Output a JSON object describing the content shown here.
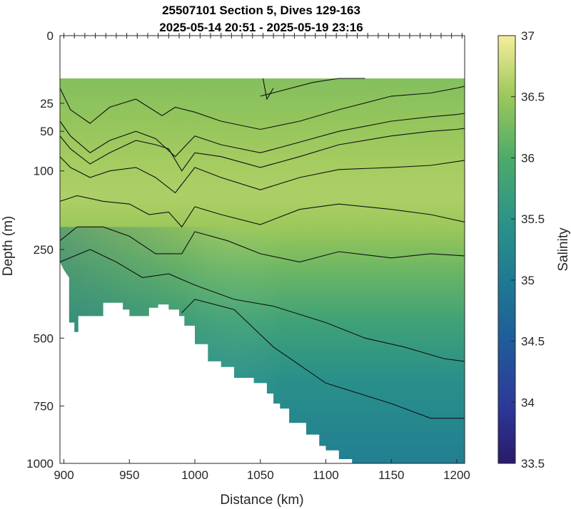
{
  "chart_data": {
    "type": "heatmap",
    "title": [
      "25507101 Section 5, Dives 129-163",
      "2025-05-14 20:51 - 2025-05-19 23:16"
    ],
    "xlabel": "Distance (km)",
    "ylabel": "Depth (m)",
    "xlim": [
      897,
      1206
    ],
    "ylim": [
      0,
      1000
    ],
    "y_scale": "sqrt",
    "x_ticks": [
      900,
      950,
      1000,
      1050,
      1100,
      1150,
      1200
    ],
    "y_ticks": [
      0,
      25,
      50,
      100,
      250,
      500,
      750,
      1000
    ],
    "colorbar": {
      "label": "Salinity",
      "range": [
        33.5,
        37
      ],
      "ticks": [
        33.5,
        34,
        34.5,
        35,
        35.5,
        36,
        36.5,
        37
      ],
      "colormap": "haline"
    },
    "data_top_depth": 10,
    "salinity_profile": {
      "depth": [
        10,
        40,
        90,
        140,
        200,
        300,
        450,
        650,
        1000
      ],
      "salinity": [
        36.35,
        36.45,
        36.55,
        36.6,
        36.5,
        36.2,
        35.8,
        35.4,
        35.1
      ]
    },
    "contours": [
      {
        "distance": [
          897,
          905,
          920,
          935,
          955,
          975,
          985,
          1000,
          1020,
          1050,
          1080,
          1110,
          1150,
          1180,
          1200,
          1206
        ],
        "depth": [
          15,
          30,
          42,
          28,
          22,
          35,
          28,
          32,
          40,
          48,
          40,
          30,
          20,
          18,
          15,
          14
        ]
      },
      {
        "distance": [
          897,
          905,
          920,
          935,
          955,
          970,
          985,
          1000,
          1020,
          1050,
          1080,
          1110,
          1150,
          1180,
          1200,
          1206
        ],
        "depth": [
          40,
          55,
          75,
          60,
          50,
          58,
          80,
          55,
          65,
          75,
          62,
          50,
          40,
          36,
          34,
          33
        ],
        "side_distance": [
          1050,
          1090,
          1110,
          1130
        ],
        "side_depth": [
          20,
          12,
          10,
          10
        ]
      },
      {
        "distance": [
          897,
          905,
          920,
          935,
          955,
          970,
          980,
          990,
          1000,
          1020,
          1050,
          1080,
          1110,
          1150,
          1180,
          1200,
          1206
        ],
        "depth": [
          55,
          70,
          90,
          75,
          60,
          65,
          70,
          100,
          75,
          80,
          95,
          80,
          65,
          55,
          50,
          48,
          47
        ]
      },
      {
        "distance": [
          897,
          905,
          920,
          935,
          955,
          970,
          985,
          1000,
          1020,
          1050,
          1080,
          1110,
          1150,
          1180,
          1206
        ],
        "depth": [
          80,
          95,
          110,
          100,
          95,
          110,
          135,
          95,
          110,
          130,
          110,
          98,
          95,
          92,
          85
        ]
      },
      {
        "distance": [
          897,
          910,
          930,
          950,
          965,
          980,
          990,
          1000,
          1020,
          1050,
          1080,
          1110,
          1150,
          1180,
          1206
        ],
        "depth": [
          150,
          140,
          150,
          155,
          175,
          170,
          200,
          160,
          175,
          195,
          165,
          155,
          165,
          175,
          190
        ]
      },
      {
        "distance": [
          897,
          910,
          930,
          950,
          970,
          990,
          1000,
          1025,
          1050,
          1080,
          1110,
          1150,
          1180,
          1206
        ],
        "depth": [
          230,
          200,
          200,
          220,
          260,
          260,
          210,
          230,
          260,
          280,
          255,
          270,
          260,
          265
        ]
      },
      {
        "distance": [
          897,
          920,
          940,
          960,
          980,
          1000,
          1030,
          1060,
          1100,
          1130,
          1160,
          1190,
          1206
        ],
        "depth": [
          280,
          250,
          280,
          320,
          310,
          340,
          380,
          400,
          450,
          500,
          530,
          570,
          580
        ]
      },
      {
        "distance": [
          990,
          1000,
          1030,
          1060,
          1100,
          1150,
          1180,
          1206
        ],
        "depth": [
          420,
          380,
          410,
          530,
          660,
          740,
          800,
          800
        ]
      }
    ],
    "seafloor": {
      "distance": [
        897,
        900,
        904,
        904,
        908,
        908,
        911,
        911,
        930,
        930,
        945,
        945,
        950,
        950,
        965,
        965,
        972,
        972,
        980,
        980,
        988,
        988,
        992,
        992,
        1000,
        1000,
        1010,
        1010,
        1020,
        1020,
        1030,
        1030,
        1045,
        1045,
        1055,
        1055,
        1060,
        1060,
        1065,
        1065,
        1072,
        1072,
        1085,
        1085,
        1095,
        1095,
        1100,
        1100,
        1110,
        1110,
        1120,
        1120,
        1206
      ],
      "depth": [
        280,
        300,
        320,
        450,
        450,
        480,
        480,
        430,
        430,
        390,
        390,
        410,
        410,
        430,
        430,
        405,
        405,
        395,
        395,
        410,
        410,
        430,
        430,
        460,
        460,
        520,
        520,
        580,
        580,
        600,
        600,
        640,
        640,
        660,
        660,
        700,
        700,
        740,
        740,
        760,
        760,
        820,
        820,
        870,
        870,
        920,
        920,
        940,
        940,
        980,
        980,
        1000,
        1000
      ]
    },
    "mixed_layer_break": {
      "distance": [
        1052,
        1055,
        1060
      ],
      "depth": [
        10,
        22,
        15
      ]
    }
  }
}
